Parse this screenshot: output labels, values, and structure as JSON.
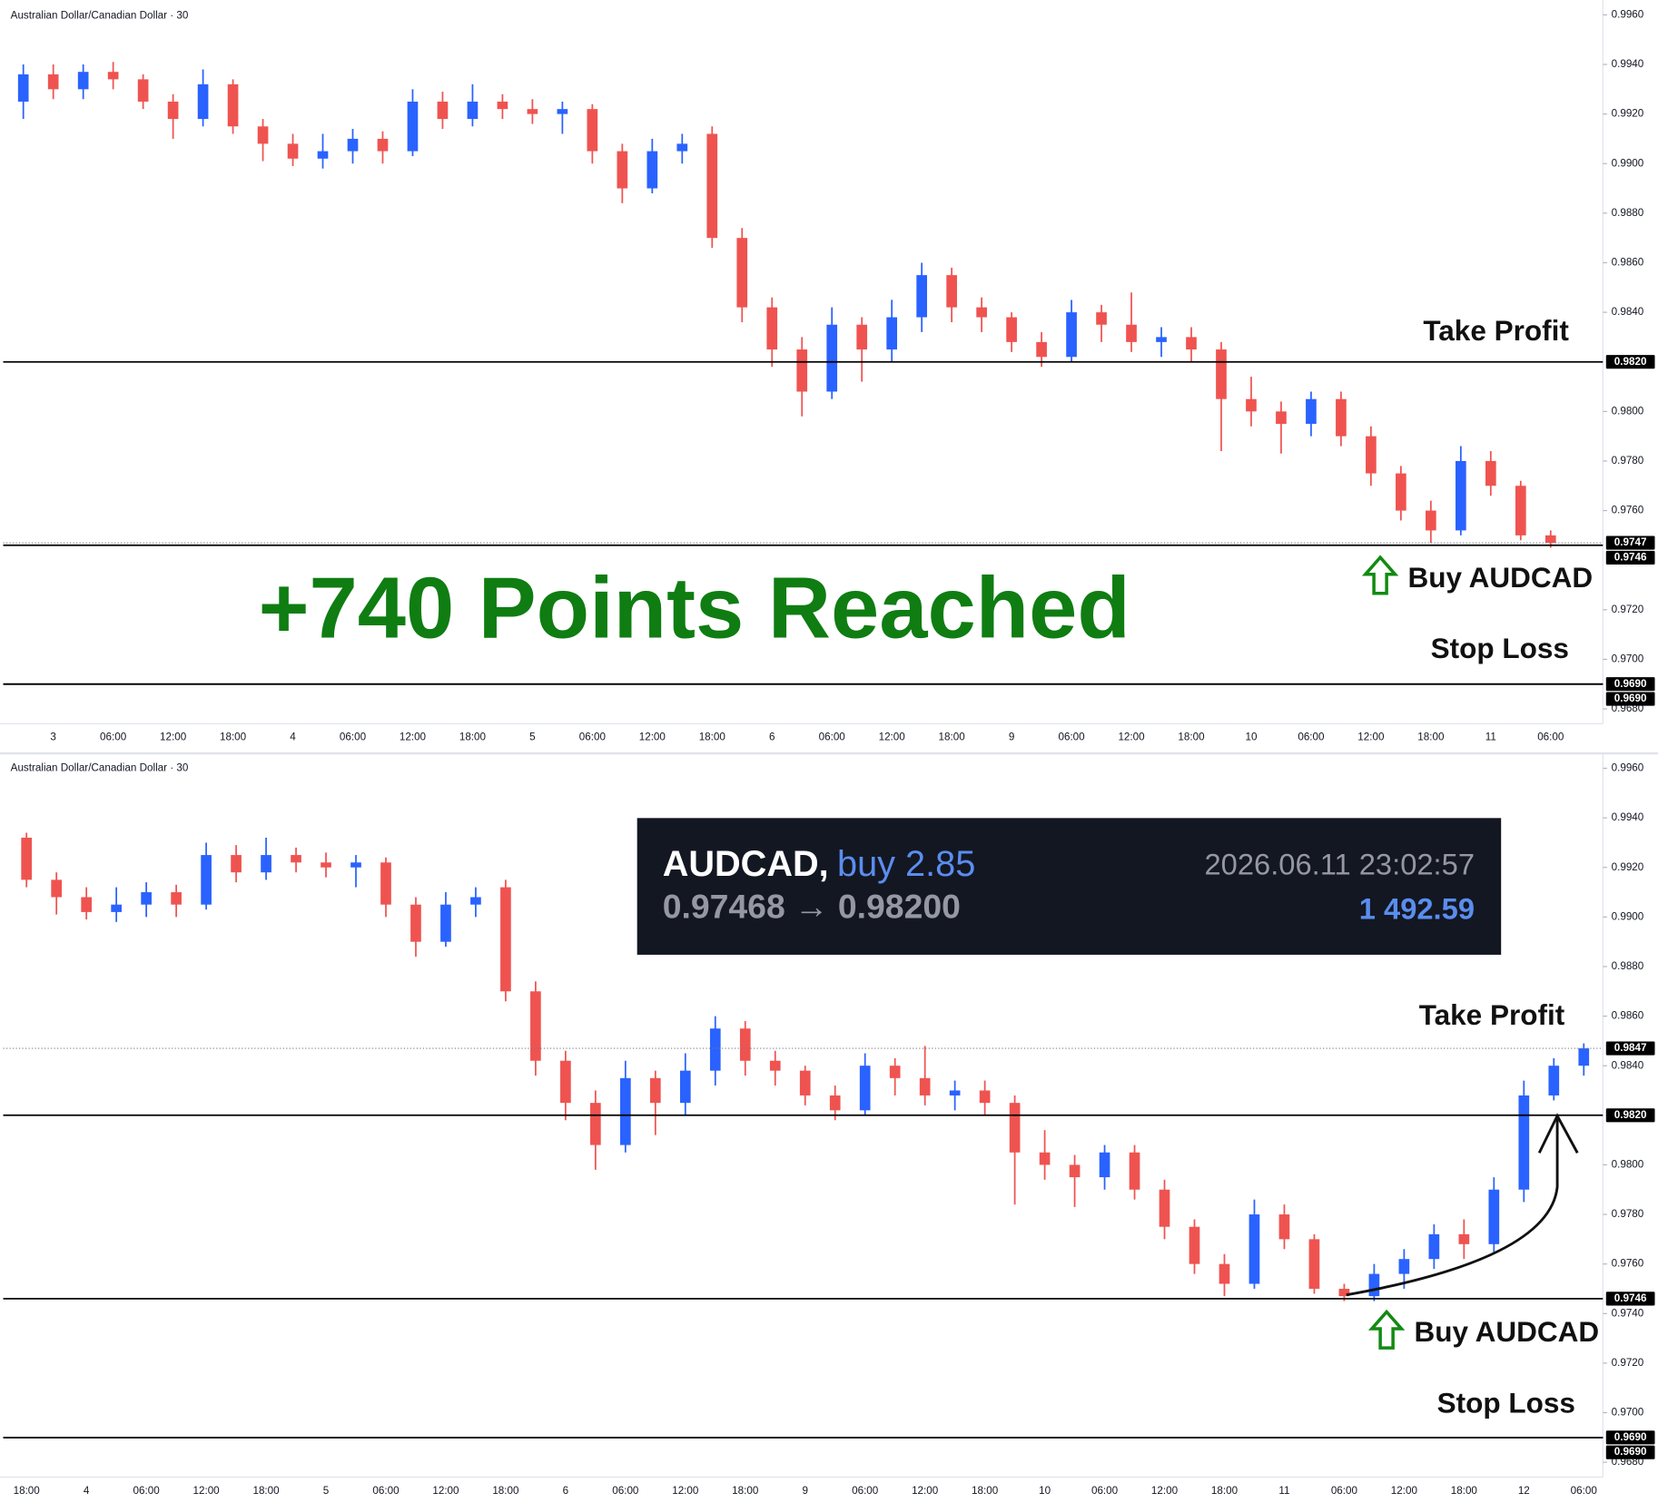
{
  "chart_data": [
    {
      "type": "candlestick",
      "title": "Australian Dollar/Canadian Dollar · 30",
      "up_color": "#2962ff",
      "down_color": "#ef5350",
      "categories": [
        null,
        "3",
        null,
        "06:00",
        null,
        "12:00",
        null,
        "18:00",
        null,
        "4",
        null,
        "06:00",
        null,
        "12:00",
        null,
        "18:00",
        null,
        "5",
        null,
        "06:00",
        null,
        "12:00",
        null,
        "18:00",
        null,
        "6",
        null,
        "06:00",
        null,
        "12:00",
        null,
        "18:00",
        null,
        "9",
        null,
        "06:00",
        null,
        "12:00",
        null,
        "18:00",
        null,
        "10",
        null,
        "06:00",
        null,
        "12:00",
        null,
        "18:00",
        null,
        "11",
        null,
        "06:00"
      ],
      "open": [
        0.9925,
        0.9936,
        0.993,
        0.9937,
        0.9934,
        0.9925,
        0.9918,
        0.9932,
        0.9915,
        0.9908,
        0.9902,
        0.9905,
        0.991,
        0.9905,
        0.9925,
        0.9918,
        0.9925,
        0.9922,
        0.992,
        0.9922,
        0.9905,
        0.989,
        0.9905,
        0.9912,
        0.987,
        0.9842,
        0.9825,
        0.9808,
        0.9835,
        0.9825,
        0.9838,
        0.9855,
        0.9842,
        0.9838,
        0.9828,
        0.9822,
        0.984,
        0.9835,
        0.9828,
        0.983,
        0.9825,
        0.9805,
        0.98,
        0.9795,
        0.9805,
        0.979,
        0.9775,
        0.976,
        0.9752,
        0.978,
        0.977,
        0.975
      ],
      "high": [
        0.994,
        0.994,
        0.994,
        0.9941,
        0.9936,
        0.9928,
        0.9938,
        0.9934,
        0.9918,
        0.9912,
        0.9912,
        0.9914,
        0.9913,
        0.993,
        0.9929,
        0.9932,
        0.9928,
        0.9926,
        0.9925,
        0.9924,
        0.9908,
        0.991,
        0.9912,
        0.9915,
        0.9874,
        0.9846,
        0.983,
        0.9842,
        0.9838,
        0.9845,
        0.986,
        0.9858,
        0.9846,
        0.984,
        0.9832,
        0.9845,
        0.9843,
        0.9848,
        0.9834,
        0.9834,
        0.9828,
        0.9814,
        0.9804,
        0.9808,
        0.9808,
        0.9794,
        0.9778,
        0.9764,
        0.9786,
        0.9784,
        0.9772,
        0.9752
      ],
      "low": [
        0.9918,
        0.9926,
        0.9926,
        0.993,
        0.9922,
        0.991,
        0.9915,
        0.9912,
        0.9901,
        0.9899,
        0.9898,
        0.99,
        0.99,
        0.9903,
        0.9914,
        0.9915,
        0.9918,
        0.9916,
        0.9912,
        0.99,
        0.9884,
        0.9888,
        0.99,
        0.9866,
        0.9836,
        0.9818,
        0.9798,
        0.9805,
        0.9812,
        0.982,
        0.9832,
        0.9836,
        0.9832,
        0.9824,
        0.9818,
        0.982,
        0.9828,
        0.9824,
        0.9822,
        0.982,
        0.9784,
        0.9794,
        0.9783,
        0.979,
        0.9786,
        0.977,
        0.9756,
        0.9747,
        0.975,
        0.9766,
        0.9748,
        0.9745
      ],
      "close": [
        0.9936,
        0.993,
        0.9937,
        0.9934,
        0.9925,
        0.9918,
        0.9932,
        0.9915,
        0.9908,
        0.9902,
        0.9905,
        0.991,
        0.9905,
        0.9925,
        0.9918,
        0.9925,
        0.9922,
        0.992,
        0.9922,
        0.9905,
        0.989,
        0.9905,
        0.9908,
        0.987,
        0.9842,
        0.9825,
        0.9808,
        0.9835,
        0.9825,
        0.9838,
        0.9855,
        0.9842,
        0.9838,
        0.9828,
        0.9822,
        0.984,
        0.9835,
        0.9828,
        0.983,
        0.9825,
        0.9805,
        0.98,
        0.9795,
        0.9805,
        0.979,
        0.9775,
        0.976,
        0.9752,
        0.978,
        0.977,
        0.975,
        0.9747
      ],
      "ylim": [
        0.9674,
        0.9966
      ],
      "yticks": [
        {
          "value": 0.996,
          "label": "0.9960"
        },
        {
          "value": 0.994,
          "label": "0.9940"
        },
        {
          "value": 0.992,
          "label": "0.9920"
        },
        {
          "value": 0.99,
          "label": "0.9900"
        },
        {
          "value": 0.988,
          "label": "0.9880"
        },
        {
          "value": 0.986,
          "label": "0.9860"
        },
        {
          "value": 0.984,
          "label": "0.9840"
        },
        {
          "value": 0.98,
          "label": "0.9800"
        },
        {
          "value": 0.978,
          "label": "0.9780"
        },
        {
          "value": 0.976,
          "label": "0.9760"
        },
        {
          "value": 0.972,
          "label": "0.9720"
        },
        {
          "value": 0.97,
          "label": "0.9700"
        },
        {
          "value": 0.968,
          "label": "0.9680"
        }
      ],
      "levels": [
        {
          "value": 0.982,
          "label": "0.9820",
          "style": "solid"
        },
        {
          "value": 0.9747,
          "label": "0.9747",
          "style": "dotted"
        },
        {
          "value": 0.9746,
          "label": "0.9746",
          "style": "solid"
        },
        {
          "value": 0.969,
          "label": "0.9690",
          "style": "solid"
        },
        {
          "value": 0.969,
          "label": "0.9690",
          "style": "solid"
        }
      ],
      "annotations": {
        "take_profit": "Take Profit",
        "buy": "Buy AUDCAD",
        "stop_loss": "Stop Loss",
        "result": "+740 Points Reached"
      }
    },
    {
      "type": "candlestick",
      "title": "Australian Dollar/Canadian Dollar · 30",
      "up_color": "#2962ff",
      "down_color": "#ef5350",
      "categories": [
        "18:00",
        null,
        "4",
        null,
        "06:00",
        null,
        "12:00",
        null,
        "18:00",
        null,
        "5",
        null,
        "06:00",
        null,
        "12:00",
        null,
        "18:00",
        null,
        "6",
        null,
        "06:00",
        null,
        "12:00",
        null,
        "18:00",
        null,
        "9",
        null,
        "06:00",
        null,
        "12:00",
        null,
        "18:00",
        null,
        "10",
        null,
        "06:00",
        null,
        "12:00",
        null,
        "18:00",
        null,
        "11",
        null,
        "06:00",
        null,
        "12:00",
        null,
        "18:00",
        null,
        "12",
        null,
        "06:00"
      ],
      "open": [
        0.9932,
        0.9915,
        0.9908,
        0.9902,
        0.9905,
        0.991,
        0.9905,
        0.9925,
        0.9918,
        0.9925,
        0.9922,
        0.992,
        0.9922,
        0.9905,
        0.989,
        0.9905,
        0.9912,
        0.987,
        0.9842,
        0.9825,
        0.9808,
        0.9835,
        0.9825,
        0.9838,
        0.9855,
        0.9842,
        0.9838,
        0.9828,
        0.9822,
        0.984,
        0.9835,
        0.9828,
        0.983,
        0.9825,
        0.9805,
        0.98,
        0.9795,
        0.9805,
        0.979,
        0.9775,
        0.976,
        0.9752,
        0.978,
        0.977,
        0.975,
        0.9747,
        0.9756,
        0.9762,
        0.9772,
        0.9768,
        0.979,
        0.9828,
        0.984
      ],
      "high": [
        0.9934,
        0.9918,
        0.9912,
        0.9912,
        0.9914,
        0.9913,
        0.993,
        0.9929,
        0.9932,
        0.9928,
        0.9926,
        0.9925,
        0.9924,
        0.9908,
        0.991,
        0.9912,
        0.9915,
        0.9874,
        0.9846,
        0.983,
        0.9842,
        0.9838,
        0.9845,
        0.986,
        0.9858,
        0.9846,
        0.984,
        0.9832,
        0.9845,
        0.9843,
        0.9848,
        0.9834,
        0.9834,
        0.9828,
        0.9814,
        0.9804,
        0.9808,
        0.9808,
        0.9794,
        0.9778,
        0.9764,
        0.9786,
        0.9784,
        0.9772,
        0.9752,
        0.976,
        0.9766,
        0.9776,
        0.9778,
        0.9795,
        0.9834,
        0.9843,
        0.9849
      ],
      "low": [
        0.9912,
        0.9901,
        0.9899,
        0.9898,
        0.99,
        0.99,
        0.9903,
        0.9914,
        0.9915,
        0.9918,
        0.9916,
        0.9912,
        0.99,
        0.9884,
        0.9888,
        0.99,
        0.9866,
        0.9836,
        0.9818,
        0.9798,
        0.9805,
        0.9812,
        0.982,
        0.9832,
        0.9836,
        0.9832,
        0.9824,
        0.9818,
        0.982,
        0.9828,
        0.9824,
        0.9822,
        0.982,
        0.9784,
        0.9794,
        0.9783,
        0.979,
        0.9786,
        0.977,
        0.9756,
        0.9747,
        0.975,
        0.9766,
        0.9748,
        0.9745,
        0.9745,
        0.975,
        0.9758,
        0.9762,
        0.9764,
        0.9785,
        0.9826,
        0.9836
      ],
      "close": [
        0.9915,
        0.9908,
        0.9902,
        0.9905,
        0.991,
        0.9905,
        0.9925,
        0.9918,
        0.9925,
        0.9922,
        0.992,
        0.9922,
        0.9905,
        0.989,
        0.9905,
        0.9908,
        0.987,
        0.9842,
        0.9825,
        0.9808,
        0.9835,
        0.9825,
        0.9838,
        0.9855,
        0.9842,
        0.9838,
        0.9828,
        0.9822,
        0.984,
        0.9835,
        0.9828,
        0.983,
        0.9825,
        0.9805,
        0.98,
        0.9795,
        0.9805,
        0.979,
        0.9775,
        0.976,
        0.9752,
        0.978,
        0.977,
        0.975,
        0.9747,
        0.9756,
        0.9762,
        0.9772,
        0.9768,
        0.979,
        0.9828,
        0.984,
        0.9847
      ],
      "ylim": [
        0.9674,
        0.9966
      ],
      "yticks": [
        {
          "value": 0.996,
          "label": "0.9960"
        },
        {
          "value": 0.994,
          "label": "0.9940"
        },
        {
          "value": 0.992,
          "label": "0.9920"
        },
        {
          "value": 0.99,
          "label": "0.9900"
        },
        {
          "value": 0.988,
          "label": "0.9880"
        },
        {
          "value": 0.986,
          "label": "0.9860"
        },
        {
          "value": 0.984,
          "label": "0.9840"
        },
        {
          "value": 0.98,
          "label": "0.9800"
        },
        {
          "value": 0.978,
          "label": "0.9780"
        },
        {
          "value": 0.976,
          "label": "0.9760"
        },
        {
          "value": 0.974,
          "label": "0.9740"
        },
        {
          "value": 0.972,
          "label": "0.9720"
        },
        {
          "value": 0.97,
          "label": "0.9700"
        },
        {
          "value": 0.968,
          "label": "0.9680"
        }
      ],
      "levels": [
        {
          "value": 0.9847,
          "label": "0.9847",
          "style": "dotted"
        },
        {
          "value": 0.982,
          "label": "0.9820",
          "style": "solid"
        },
        {
          "value": 0.9746,
          "label": "0.9746",
          "style": "solid"
        },
        {
          "value": 0.969,
          "label": "0.9690",
          "style": "solid"
        },
        {
          "value": 0.969,
          "label": "0.9690",
          "style": "solid"
        }
      ],
      "annotations": {
        "take_profit": "Take Profit",
        "buy": "Buy AUDCAD",
        "stop_loss": "Stop Loss"
      },
      "trade_box": {
        "symbol": "AUDCAD,",
        "side": "buy 2.85",
        "time": "2026.06.11 23:02:57",
        "prices": "0.97468 → 0.98200",
        "profit": "1 492.59"
      }
    }
  ]
}
